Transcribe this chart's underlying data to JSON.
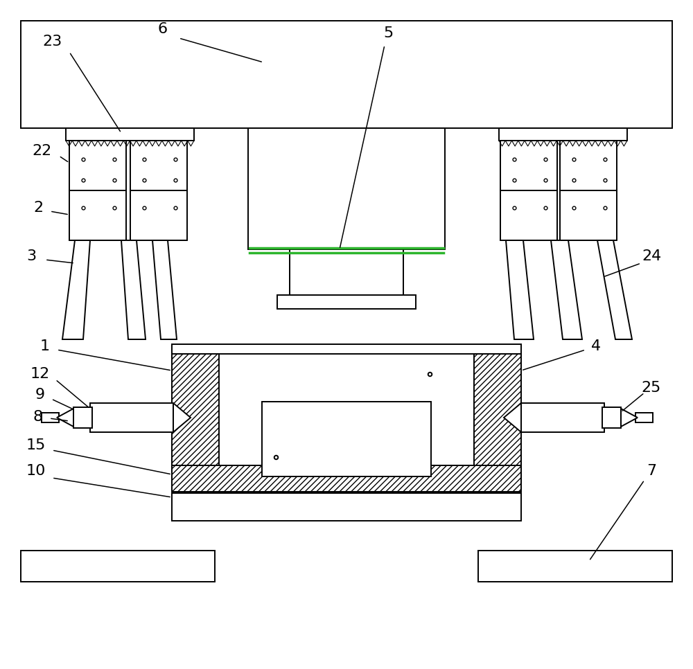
{
  "bg_color": "#ffffff",
  "fig_width": 10.0,
  "fig_height": 9.66,
  "lw": 1.4,
  "label_fs": 16
}
